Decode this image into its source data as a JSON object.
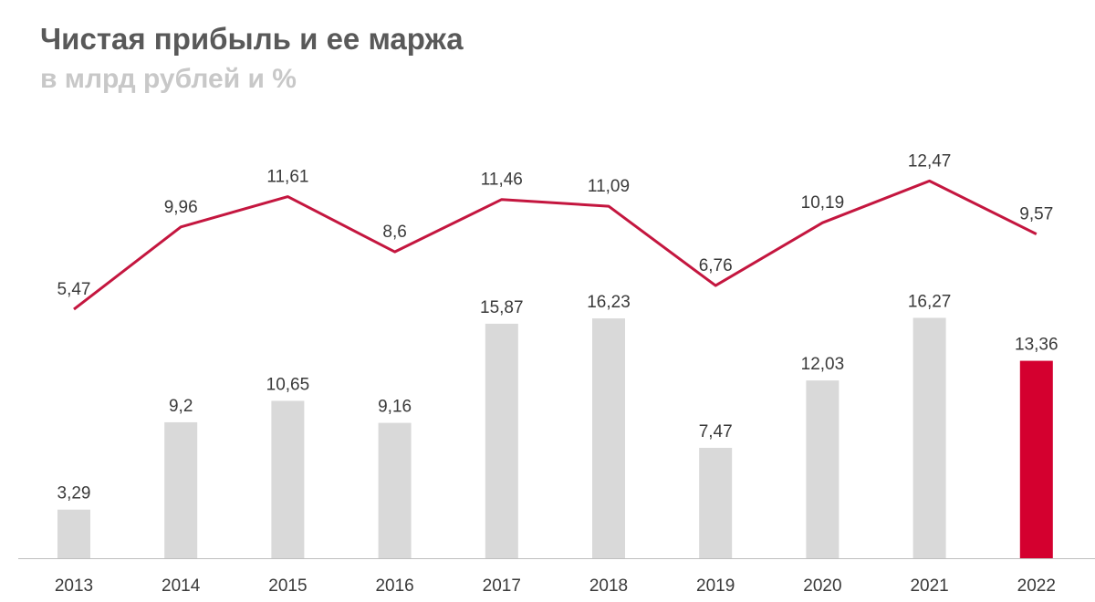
{
  "chart_data": {
    "type": "bar+line",
    "title": "Чистая прибыль и ее маржа",
    "subtitle": "в млрд рублей и %",
    "categories": [
      "2013",
      "2014",
      "2015",
      "2016",
      "2017",
      "2018",
      "2019",
      "2020",
      "2021",
      "2022"
    ],
    "bar_series": {
      "unit": "млрд рублей",
      "values": [
        3.29,
        9.2,
        10.65,
        9.16,
        15.87,
        16.23,
        7.47,
        12.03,
        16.27,
        13.36
      ],
      "labels": [
        "3,29",
        "9,2",
        "10,65",
        "9,16",
        "15,87",
        "16,23",
        "7,47",
        "12,03",
        "16,27",
        "13,36"
      ]
    },
    "line_series": {
      "unit": "%",
      "values": [
        5.47,
        9.96,
        11.61,
        8.6,
        11.46,
        11.09,
        6.76,
        10.19,
        12.47,
        9.57
      ],
      "labels": [
        "5,47",
        "9,96",
        "11,61",
        "8,6",
        "11,46",
        "11,09",
        "6,76",
        "10,19",
        "12,47",
        "9,57"
      ]
    },
    "colors": {
      "bar": "#d9d9d9",
      "bar_highlight": "#d4002f",
      "line": "#c4163f",
      "axis": "#bfbfbf"
    },
    "highlight_index": 9,
    "grid": false,
    "legend": "none"
  }
}
